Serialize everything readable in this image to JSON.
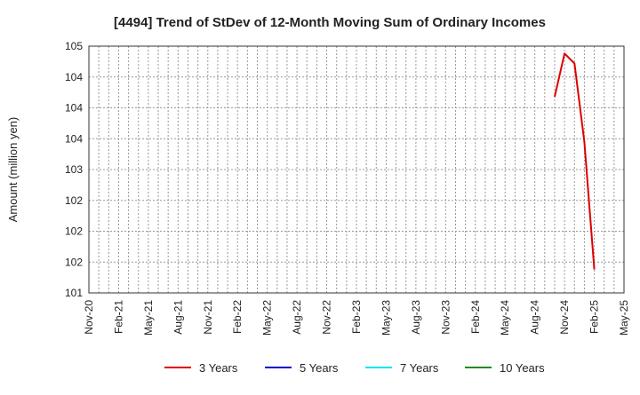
{
  "chart_data": {
    "type": "line",
    "title": "[4494]  Trend of StDev of 12-Month Moving Sum of Ordinary Incomes",
    "xlabel": "",
    "ylabel": "Amount (million yen)",
    "x_tick_labels": [
      "Nov-20",
      "Feb-21",
      "May-21",
      "Aug-21",
      "Nov-21",
      "Feb-22",
      "May-22",
      "Aug-22",
      "Nov-22",
      "Feb-23",
      "May-23",
      "Aug-23",
      "Nov-23",
      "Feb-24",
      "May-24",
      "Aug-24",
      "Nov-24",
      "Feb-25",
      "May-25"
    ],
    "y_tick_labels": [
      "101",
      "102",
      "102",
      "102",
      "103",
      "104",
      "104",
      "104",
      "105"
    ],
    "ylim": [
      101.0,
      105.0
    ],
    "x_range_months": [
      0,
      54
    ],
    "grid": true,
    "legend_position": "bottom",
    "series": [
      {
        "name": "3 Years",
        "color": "#dd0000",
        "x_months": [
          47,
          48,
          49,
          50,
          51
        ],
        "values": [
          104.18,
          104.88,
          104.72,
          103.45,
          101.38
        ]
      },
      {
        "name": "5 Years",
        "color": "#0000cc",
        "x_months": [],
        "values": []
      },
      {
        "name": "7 Years",
        "color": "#00e5ee",
        "x_months": [],
        "values": []
      },
      {
        "name": "10 Years",
        "color": "#228b22",
        "x_months": [],
        "values": []
      }
    ]
  }
}
